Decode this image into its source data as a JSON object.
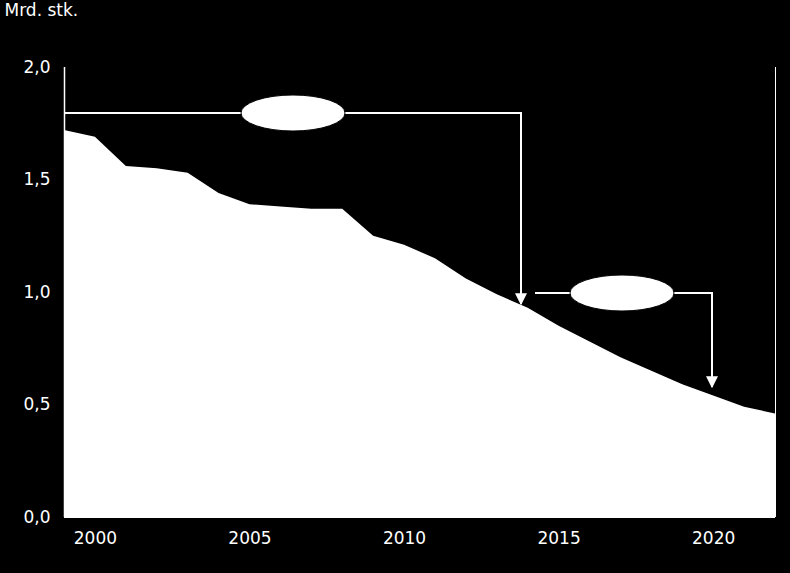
{
  "chart_data": {
    "type": "area",
    "y_label": "Mrd. stk.",
    "color": "#ffffff",
    "x": [
      1999,
      2000,
      2001,
      2002,
      2003,
      2004,
      2005,
      2006,
      2007,
      2008,
      2009,
      2010,
      2011,
      2012,
      2013,
      2014,
      2015,
      2016,
      2017,
      2018,
      2019,
      2020,
      2021,
      2022
    ],
    "values": [
      1.72,
      1.69,
      1.56,
      1.55,
      1.53,
      1.44,
      1.39,
      1.38,
      1.37,
      1.37,
      1.25,
      1.21,
      1.15,
      1.06,
      0.99,
      0.93,
      0.85,
      0.78,
      0.71,
      0.65,
      0.59,
      0.54,
      0.49,
      0.46
    ],
    "xlim": [
      1999,
      2022
    ],
    "xticks": [
      2000,
      2005,
      2010,
      2015,
      2020
    ],
    "ylim": [
      0,
      2
    ],
    "yticks": [
      {
        "value": 0,
        "label": "0,0"
      },
      {
        "value": 0.5,
        "label": "0,5"
      },
      {
        "value": 1,
        "label": "1,0"
      },
      {
        "value": 1.5,
        "label": "1,5"
      },
      {
        "value": 2,
        "label": "2,0"
      }
    ],
    "grid": false
  }
}
